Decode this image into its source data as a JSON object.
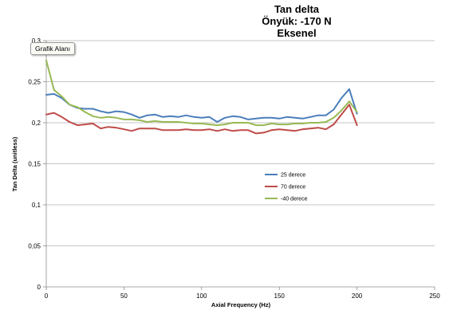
{
  "tooltip": "Grafik Alanı",
  "chart_data": {
    "type": "line",
    "title": [
      "Tan delta",
      "Önyük: -170 N",
      "Eksenel"
    ],
    "xlabel": "Axial Frequency (Hz)",
    "ylabel": "Tan Delta (unitless)",
    "xlim": [
      0,
      250
    ],
    "ylim": [
      0,
      0.3
    ],
    "xticks": [
      0,
      50,
      100,
      150,
      200,
      250
    ],
    "xtick_labels": [
      "0",
      "50",
      "100",
      "150",
      "200",
      "250"
    ],
    "yticks": [
      0,
      0.05,
      0.1,
      0.15,
      0.2,
      0.25,
      0.3
    ],
    "ytick_labels": [
      "0",
      "0,05",
      "0,1",
      "0,15",
      "0,2",
      "0,25",
      "0,3"
    ],
    "grid": "horizontal",
    "legend_position": "center-right",
    "x": [
      0,
      5,
      10,
      15,
      20,
      25,
      30,
      35,
      40,
      45,
      50,
      55,
      60,
      65,
      70,
      75,
      80,
      85,
      90,
      95,
      100,
      105,
      110,
      115,
      120,
      125,
      130,
      135,
      140,
      145,
      150,
      155,
      160,
      165,
      170,
      175,
      180,
      185,
      190,
      195,
      200
    ],
    "series": [
      {
        "name": "25 derece",
        "color": "#4a7ebb",
        "values": [
          0.234,
          0.235,
          0.23,
          0.222,
          0.218,
          0.217,
          0.217,
          0.214,
          0.212,
          0.214,
          0.213,
          0.21,
          0.206,
          0.209,
          0.21,
          0.207,
          0.208,
          0.207,
          0.209,
          0.207,
          0.206,
          0.207,
          0.201,
          0.206,
          0.208,
          0.207,
          0.204,
          0.205,
          0.206,
          0.206,
          0.205,
          0.207,
          0.206,
          0.205,
          0.207,
          0.209,
          0.209,
          0.216,
          0.23,
          0.241,
          0.211
        ]
      },
      {
        "name": "70 derece",
        "color": "#be4b48",
        "values": [
          0.21,
          0.212,
          0.207,
          0.201,
          0.197,
          0.198,
          0.199,
          0.193,
          0.195,
          0.194,
          0.192,
          0.19,
          0.193,
          0.193,
          0.193,
          0.191,
          0.191,
          0.191,
          0.192,
          0.191,
          0.191,
          0.192,
          0.19,
          0.192,
          0.19,
          0.191,
          0.191,
          0.187,
          0.188,
          0.191,
          0.192,
          0.191,
          0.19,
          0.192,
          0.193,
          0.194,
          0.192,
          0.198,
          0.21,
          0.222,
          0.197
        ]
      },
      {
        "name": "-40 derece",
        "color": "#98b954",
        "values": [
          0.276,
          0.24,
          0.232,
          0.222,
          0.219,
          0.213,
          0.208,
          0.206,
          0.207,
          0.206,
          0.204,
          0.204,
          0.203,
          0.201,
          0.202,
          0.201,
          0.201,
          0.201,
          0.2,
          0.199,
          0.199,
          0.198,
          0.197,
          0.198,
          0.2,
          0.2,
          0.2,
          0.197,
          0.197,
          0.199,
          0.198,
          0.198,
          0.199,
          0.199,
          0.2,
          0.2,
          0.201,
          0.206,
          0.215,
          0.226,
          0.213
        ]
      }
    ]
  }
}
